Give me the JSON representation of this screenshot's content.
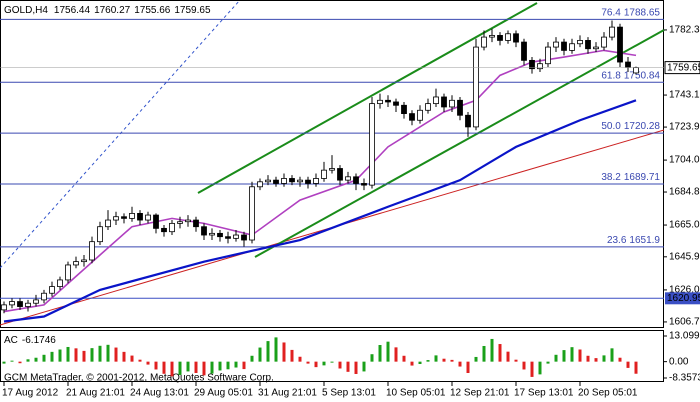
{
  "chart_data": {
    "type": "candlestick",
    "symbol": "GOLD,H4",
    "footer": "GCM MetaTrader, © 2001-2012, MetaQuotes Software Corp.",
    "up_color": "#ffffff",
    "down_color": "#000000",
    "categories": [
      "17 Aug 2012",
      null,
      null,
      null,
      null,
      null,
      null,
      null,
      "21 Aug 21:01",
      null,
      null,
      null,
      null,
      null,
      null,
      null,
      "24 Aug 13:01",
      null,
      null,
      null,
      null,
      null,
      null,
      null,
      "29 Aug 05:01",
      null,
      null,
      null,
      null,
      null,
      null,
      null,
      "31 Aug 21:01",
      null,
      null,
      null,
      null,
      null,
      null,
      null,
      "5 Sep 13:01",
      null,
      null,
      null,
      null,
      null,
      null,
      null,
      "10 Sep 05:01",
      null,
      null,
      null,
      null,
      null,
      null,
      null,
      "12 Sep 21:01",
      null,
      null,
      null,
      null,
      null,
      null,
      null,
      "17 Sep 13:01",
      null,
      null,
      null,
      null,
      null,
      null,
      null,
      "20 Sep 05:01",
      null,
      null,
      null,
      null,
      null,
      null,
      null
    ],
    "open": [
      1614,
      1617,
      1619,
      1616,
      1618,
      1620,
      1624,
      1628,
      1632,
      1641,
      1643,
      1644,
      1655,
      1664,
      1668,
      1670,
      1669,
      1672,
      1668,
      1671,
      1663,
      1661,
      1666,
      1667,
      1668,
      1664,
      1659,
      1660,
      1658,
      1657,
      1659,
      1656,
      1688,
      1691,
      1692,
      1690,
      1693,
      1691,
      1692,
      1690,
      1693,
      1698,
      1699,
      1692,
      1694,
      1690,
      1689,
      1738,
      1740,
      1739,
      1737,
      1732,
      1728,
      1734,
      1738,
      1742,
      1736,
      1740,
      1731,
      1724,
      1772,
      1778,
      1779,
      1776,
      1780,
      1775,
      1764,
      1759,
      1762,
      1772,
      1775,
      1770,
      1774,
      1776,
      1771,
      1772,
      1778,
      1784,
      1763,
      1756.44
    ],
    "high": [
      1619,
      1621,
      1621,
      1620,
      1623,
      1626,
      1631,
      1634,
      1643,
      1646,
      1647,
      1658,
      1667,
      1674,
      1673,
      1672,
      1676,
      1674,
      1673,
      1672,
      1665,
      1668,
      1670,
      1671,
      1670,
      1666,
      1663,
      1662,
      1661,
      1662,
      1661,
      1691,
      1693,
      1695,
      1694,
      1696,
      1695,
      1694,
      1694,
      1696,
      1703,
      1707,
      1701,
      1697,
      1696,
      1693,
      1742,
      1744,
      1743,
      1741,
      1739,
      1734,
      1737,
      1741,
      1747,
      1744,
      1743,
      1742,
      1733,
      1777,
      1782,
      1783,
      1781,
      1782,
      1782,
      1777,
      1766,
      1765,
      1775,
      1778,
      1777,
      1777,
      1779,
      1778,
      1775,
      1781,
      1788,
      1786,
      1766,
      1760.27
    ],
    "low": [
      1612,
      1615,
      1614,
      1613,
      1616,
      1618,
      1622,
      1626,
      1630,
      1639,
      1640,
      1642,
      1653,
      1662,
      1665,
      1666,
      1667,
      1665,
      1666,
      1660,
      1658,
      1659,
      1663,
      1664,
      1661,
      1656,
      1656,
      1655,
      1654,
      1655,
      1652,
      1654,
      1686,
      1689,
      1688,
      1688,
      1689,
      1688,
      1687,
      1688,
      1691,
      1696,
      1689,
      1690,
      1686,
      1686,
      1687,
      1735,
      1736,
      1733,
      1729,
      1725,
      1726,
      1732,
      1736,
      1733,
      1733,
      1728,
      1718,
      1722,
      1770,
      1775,
      1773,
      1774,
      1772,
      1761,
      1756,
      1757,
      1760,
      1769,
      1767,
      1768,
      1772,
      1768,
      1769,
      1770,
      1776,
      1760,
      1757,
      1755.66
    ],
    "close": [
      1617,
      1619,
      1616,
      1618,
      1620,
      1624,
      1628,
      1632,
      1641,
      1643,
      1644,
      1655,
      1664,
      1668,
      1670,
      1669,
      1672,
      1668,
      1671,
      1663,
      1661,
      1666,
      1667,
      1668,
      1664,
      1659,
      1660,
      1658,
      1657,
      1659,
      1656,
      1688,
      1691,
      1692,
      1690,
      1693,
      1691,
      1692,
      1690,
      1693,
      1698,
      1699,
      1692,
      1694,
      1690,
      1689,
      1738,
      1740,
      1739,
      1737,
      1732,
      1728,
      1734,
      1738,
      1742,
      1736,
      1740,
      1731,
      1724,
      1772,
      1778,
      1779,
      1776,
      1780,
      1775,
      1764,
      1759,
      1762,
      1772,
      1775,
      1770,
      1774,
      1776,
      1771,
      1772,
      1778,
      1784,
      1763,
      1760,
      1759.65
    ],
    "lines": [
      {
        "color": "#b040c0",
        "x": [
          0,
          5,
          12,
          16,
          21,
          25,
          31,
          37,
          44,
          48,
          55,
          59,
          62,
          66,
          70,
          75,
          79
        ],
        "values": [
          1613,
          1617,
          1647,
          1664,
          1669,
          1666,
          1659,
          1680,
          1692,
          1712,
          1733,
          1740,
          1755,
          1763,
          1766,
          1770,
          1767
        ]
      },
      {
        "color": "#0a14c8",
        "x": [
          0,
          5,
          12,
          25,
          37,
          48,
          57,
          64,
          72,
          79
        ],
        "values": [
          1607,
          1610,
          1626,
          1643,
          1656,
          1676,
          1692,
          1712,
          1728,
          1740
        ]
      }
    ],
    "fib_color": "#3a48b0",
    "fib_levels": [
      {
        "label": "76.4",
        "value": 1788.65
      },
      {
        "label": "61.8",
        "value": 1750.84
      },
      {
        "label": "50.0",
        "value": 1720.28
      },
      {
        "label": "38.2",
        "value": 1689.71
      },
      {
        "label": "23.6",
        "value": 1651.9
      }
    ],
    "hline": {
      "value": 1620.95,
      "color": "#3a4fc4"
    },
    "ylim": [
      1603.1,
      1800.3
    ],
    "yticks": [
      {
        "value": 1782.3,
        "label": "1782.30"
      },
      1743.15,
      {
        "value": 1723.9,
        "label": "1723.90"
      },
      1704.05,
      1684.85,
      {
        "value": 1665,
        "label": "1665.00"
      },
      {
        "value": 1645.9,
        "label": "1645.90"
      },
      {
        "value": 1626,
        "label": "1626.00"
      },
      1606.75
    ],
    "indicator": {
      "name": "AC",
      "up_color": "#1aa01a",
      "down_color": "#e02020",
      "ylim": [
        -10.4,
        16.17
      ],
      "yticks": [
        13.0997,
        {
          "value": 0,
          "label": "0.00"
        },
        -8.3573
      ],
      "values": [
        -1.0,
        0.5,
        -0.8,
        1.2,
        2.0,
        3.5,
        5.0,
        6.2,
        7.5,
        6.8,
        5.5,
        6.9,
        8.1,
        8.6,
        7.2,
        5.0,
        3.1,
        1.0,
        -1.5,
        -4.0,
        -6.2,
        -7.5,
        -6.8,
        -5.0,
        -5.8,
        -7.0,
        -6.1,
        -4.5,
        -3.9,
        -3.0,
        -3.8,
        3.0,
        7.2,
        10.5,
        12.4,
        9.8,
        6.0,
        2.5,
        -1.0,
        -2.8,
        -1.9,
        -0.5,
        -3.5,
        -5.2,
        -6.3,
        -5.0,
        3.8,
        8.5,
        10.2,
        7.3,
        3.0,
        -2.0,
        -1.2,
        0.8,
        3.2,
        1.5,
        0.9,
        -2.5,
        -5.8,
        2.4,
        8.0,
        11.6,
        9.0,
        5.1,
        1.0,
        -4.0,
        -7.8,
        -6.5,
        -1.0,
        3.5,
        5.9,
        7.4,
        6.2,
        3.0,
        1.8,
        3.2,
        6.8,
        2.0,
        -3.2,
        -6.1746
      ]
    }
  }
}
